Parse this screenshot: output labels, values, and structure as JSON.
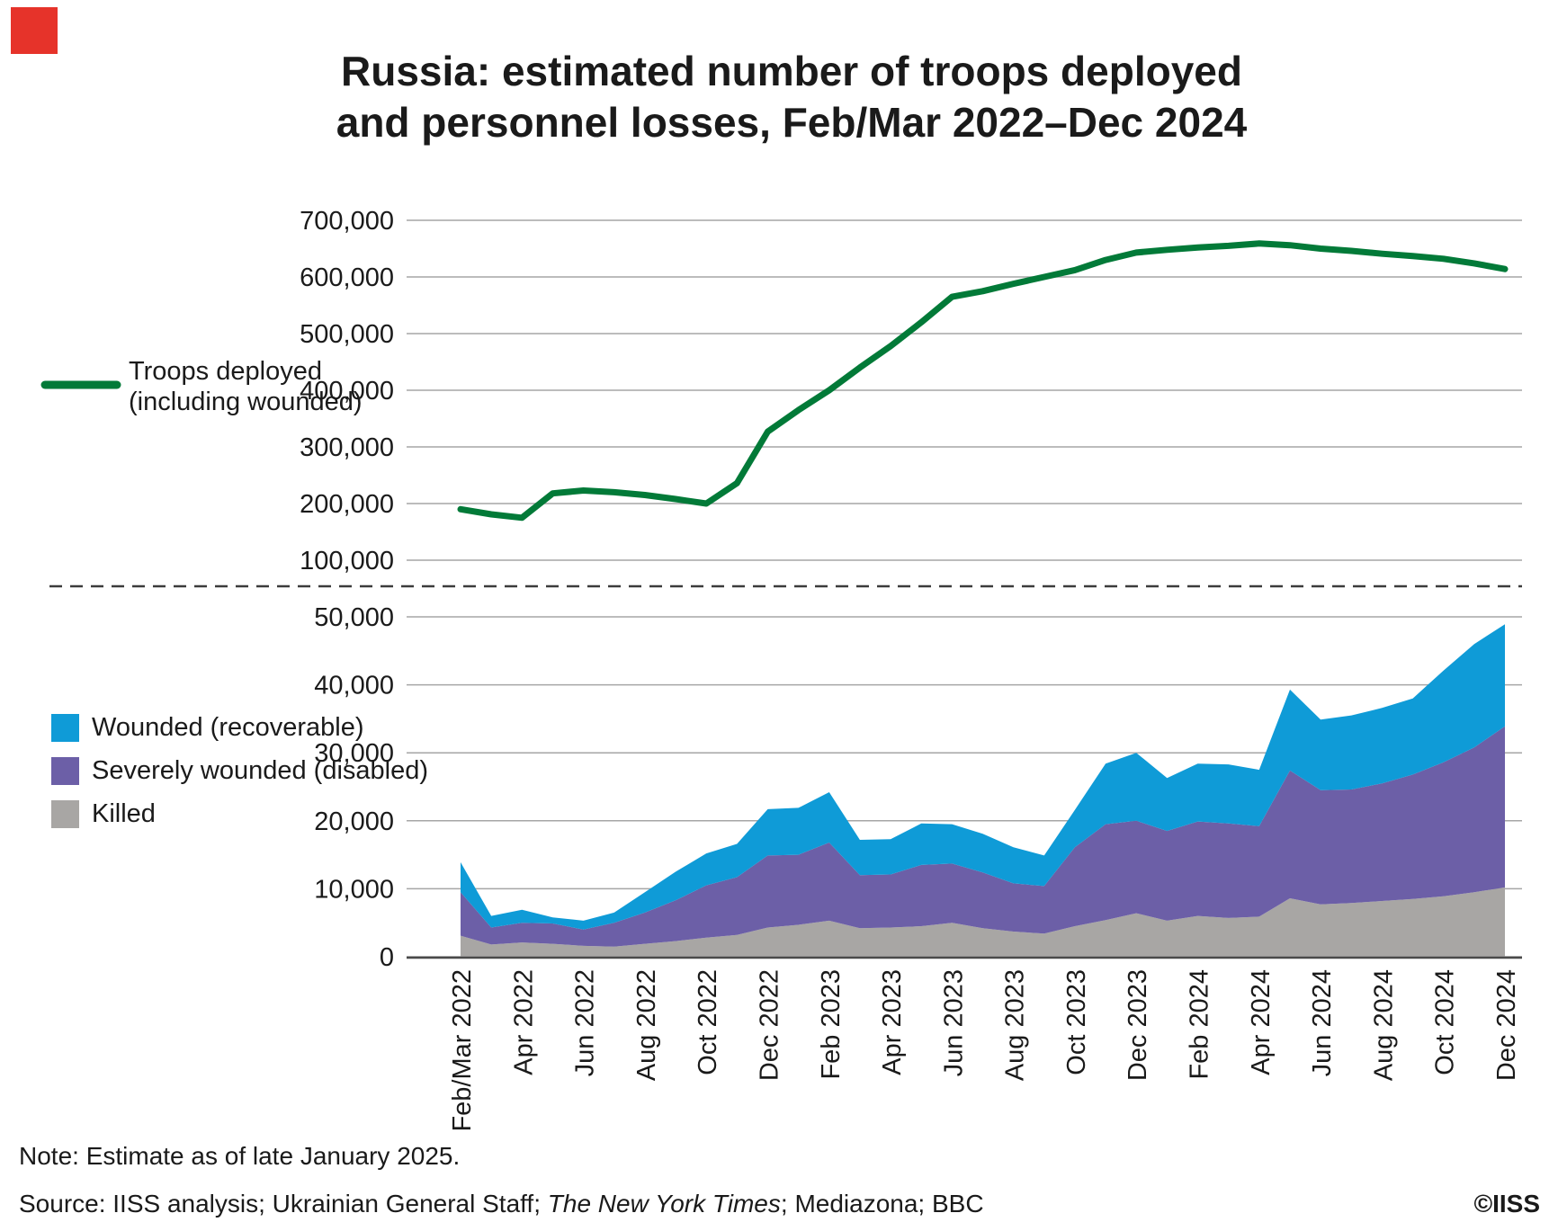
{
  "title": {
    "line1": "Russia: estimated number of troops deployed",
    "line2": "and personnel losses, Feb/Mar 2022–Dec 2024"
  },
  "brand": {
    "square_color": "#e6332a"
  },
  "legend_top": {
    "label_line1": "Troops deployed",
    "label_line2": "(including wounded)"
  },
  "legend_bottom": {
    "items": [
      {
        "label": "Wounded (recoverable)",
        "color": "#0f9bd7"
      },
      {
        "label": "Severely wounded (disabled)",
        "color": "#6c5fa7"
      },
      {
        "label": "Killed",
        "color": "#a8a6a4"
      }
    ]
  },
  "footer": {
    "note": "Note: Estimate as of late January 2025.",
    "source_prefix": "Source: IISS analysis; Ukrainian General Staff; ",
    "source_italic": "The New York Times",
    "source_suffix": "; Mediazona; BBC",
    "copyright": "©IISS"
  },
  "x_tick_labels": [
    "Feb/Mar 2022",
    "Apr 2022",
    "Jun 2022",
    "Aug 2022",
    "Oct 2022",
    "Dec 2022",
    "Feb 2023",
    "Apr 2023",
    "Jun 2023",
    "Aug 2023",
    "Oct 2023",
    "Dec 2023",
    "Feb 2024",
    "Apr 2024",
    "Jun 2024",
    "Aug 2024",
    "Oct 2024",
    "Dec 2024"
  ],
  "chart_data": [
    {
      "type": "line",
      "title": "Russia: estimated number of troops deployed and personnel losses, Feb/Mar 2022–Dec 2024",
      "x_tick_labels": [
        "Feb/Mar 2022",
        "Apr 2022",
        "Jun 2022",
        "Aug 2022",
        "Oct 2022",
        "Dec 2022",
        "Feb 2023",
        "Apr 2023",
        "Jun 2023",
        "Aug 2023",
        "Oct 2023",
        "Dec 2023",
        "Feb 2024",
        "Apr 2024",
        "Jun 2024",
        "Aug 2024",
        "Oct 2024",
        "Dec 2024"
      ],
      "points_per_tick": 2,
      "x_frequency": "monthly",
      "ylim": [
        100000,
        700000
      ],
      "y_ticks": [
        "700,000",
        "600,000",
        "500,000",
        "400,000",
        "300,000",
        "200,000",
        "100,000"
      ],
      "grid": "horizontal",
      "legend_position": "left",
      "series": [
        {
          "name": "Troops deployed (including wounded)",
          "color": "#027a38",
          "values": [
            190000,
            181000,
            175000,
            218000,
            223000,
            220000,
            215000,
            208000,
            200000,
            236000,
            327000,
            365000,
            400000,
            440000,
            478000,
            520000,
            565000,
            575000,
            588000,
            600000,
            612000,
            630000,
            643000,
            648000,
            652000,
            655000,
            659000,
            656000,
            650000,
            646000,
            641000,
            637000,
            632000,
            624000,
            614000
          ]
        }
      ]
    },
    {
      "type": "area",
      "stacked": true,
      "x_tick_labels": [
        "Feb/Mar 2022",
        "Apr 2022",
        "Jun 2022",
        "Aug 2022",
        "Oct 2022",
        "Dec 2022",
        "Feb 2023",
        "Apr 2023",
        "Jun 2023",
        "Aug 2023",
        "Oct 2023",
        "Dec 2023",
        "Feb 2024",
        "Apr 2024",
        "Jun 2024",
        "Aug 2024",
        "Oct 2024",
        "Dec 2024"
      ],
      "points_per_tick": 2,
      "x_frequency": "monthly",
      "ylim": [
        0,
        50000
      ],
      "y_ticks": [
        "50,000",
        "40,000",
        "30,000",
        "20,000",
        "10,000",
        "0"
      ],
      "grid": "horizontal",
      "legend_position": "left",
      "series": [
        {
          "name": "Killed",
          "color": "#a8a6a4",
          "values": [
            3100,
            1800,
            2100,
            1900,
            1600,
            1500,
            1900,
            2300,
            2800,
            3200,
            4300,
            4700,
            5300,
            4200,
            4300,
            4500,
            5000,
            4200,
            3700,
            3400,
            4500,
            5400,
            6400,
            5300,
            6000,
            5700,
            5900,
            8600,
            7700,
            7900,
            8200,
            8500,
            8900,
            9500,
            10200
          ]
        },
        {
          "name": "Severely wounded (disabled)",
          "color": "#6c5fa7",
          "values": [
            6400,
            2500,
            2900,
            3000,
            2400,
            3500,
            4600,
            6000,
            7700,
            8500,
            10600,
            10300,
            11500,
            7800,
            7800,
            9000,
            8700,
            8200,
            7100,
            7000,
            11600,
            14100,
            13600,
            13200,
            13900,
            13900,
            13300,
            18800,
            16800,
            16700,
            17300,
            18300,
            19700,
            21300,
            23700
          ]
        },
        {
          "name": "Wounded (recoverable)",
          "color": "#0f9bd7",
          "values": [
            4400,
            1700,
            1900,
            900,
            1300,
            1500,
            3000,
            4200,
            4700,
            4900,
            6800,
            6900,
            7400,
            5200,
            5200,
            6100,
            5800,
            5700,
            5300,
            4500,
            5500,
            8900,
            10000,
            7800,
            8500,
            8700,
            8300,
            11900,
            10400,
            10900,
            11100,
            11200,
            13500,
            15200,
            15000
          ]
        }
      ]
    }
  ]
}
